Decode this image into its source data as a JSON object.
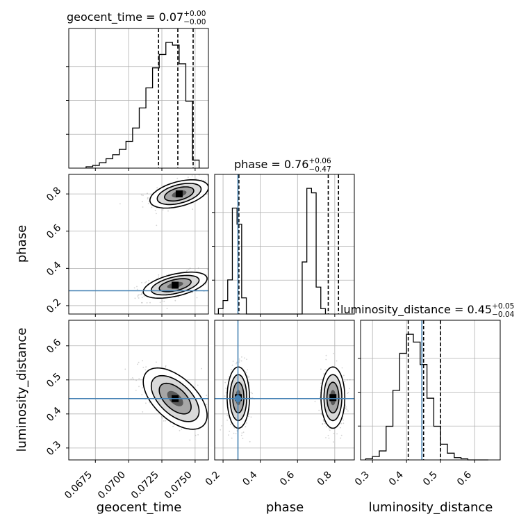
{
  "chart_data": {
    "type": "corner",
    "parameters": [
      "geocent_time",
      "phase",
      "luminosity_distance"
    ],
    "axis_labels": {
      "x": [
        "geocent_time",
        "phase",
        "luminosity_distance"
      ],
      "y": [
        "phase",
        "luminosity_distance"
      ]
    },
    "ranges": {
      "geocent_time": [
        0.0655,
        0.076
      ],
      "phase": [
        0.155,
        0.905
      ],
      "luminosity_distance": [
        0.265,
        0.675
      ]
    },
    "ticks": {
      "geocent_time": [
        0.0675,
        0.07,
        0.0725,
        0.075
      ],
      "phase": [
        0.2,
        0.4,
        0.6,
        0.8
      ],
      "luminosity_distance": [
        0.3,
        0.4,
        0.5,
        0.6
      ]
    },
    "tick_labels": {
      "geocent_time": [
        "0.0675",
        "0.0700",
        "0.0725",
        "0.0750"
      ],
      "phase": [
        "0.2",
        "0.4",
        "0.6",
        "0.8"
      ],
      "luminosity_distance": [
        "0.3",
        "0.4",
        "0.5",
        "0.6"
      ]
    },
    "truths": {
      "geocent_time": null,
      "phase": 0.28,
      "luminosity_distance": 0.445
    },
    "truth_color": "#4682b4",
    "titles": [
      {
        "param": "geocent_time",
        "prefix": "geocent_time = 0.07",
        "plus": "+0.00",
        "minus": "−0.00"
      },
      {
        "param": "phase",
        "prefix": "phase = 0.76",
        "plus": "+0.06",
        "minus": "−0.47"
      },
      {
        "param": "luminosity_distance",
        "prefix": "luminosity_distance = 0.45",
        "plus": "+0.05",
        "minus": "−0.04"
      }
    ],
    "quantiles": {
      "geocent_time": [
        0.07225,
        0.0737,
        0.07485
      ],
      "phase": [
        0.285,
        0.765,
        0.82
      ],
      "luminosity_distance": [
        0.405,
        0.45,
        0.5
      ]
    },
    "histograms": {
      "geocent_time": {
        "start": 0.0668,
        "width": 0.0005,
        "counts": [
          1,
          2,
          4,
          7,
          10,
          14,
          20,
          30,
          45,
          60,
          75,
          85,
          94,
          92,
          78,
          50,
          6
        ]
      },
      "phase": {
        "start": 0.175,
        "width": 0.025,
        "counts": [
          6,
          15,
          38,
          118,
          100,
          18,
          0,
          0,
          0,
          0,
          0,
          0,
          0,
          0,
          0,
          0,
          0,
          0,
          58,
          140,
          135,
          30,
          6
        ]
      },
      "luminosity_distance": {
        "start": 0.28,
        "width": 0.02,
        "counts": [
          1,
          3,
          8,
          30,
          62,
          95,
          112,
          105,
          85,
          55,
          30,
          14,
          6,
          2,
          1,
          0,
          0,
          0
        ]
      }
    },
    "contours_2d": [
      {
        "x": "geocent_time",
        "y": "phase",
        "modes": [
          {
            "cx": 0.0738,
            "cy": 0.8,
            "sx": 0.0011,
            "sy": 0.038,
            "rho": 0.45
          },
          {
            "cx": 0.0735,
            "cy": 0.31,
            "sx": 0.0012,
            "sy": 0.035,
            "rho": 0.5
          }
        ]
      },
      {
        "x": "geocent_time",
        "y": "luminosity_distance",
        "modes": [
          {
            "cx": 0.0735,
            "cy": 0.445,
            "sx": 0.0012,
            "sy": 0.045,
            "rho": -0.55
          }
        ]
      },
      {
        "x": "phase",
        "y": "luminosity_distance",
        "modes": [
          {
            "cx": 0.282,
            "cy": 0.448,
            "sx": 0.03,
            "sy": 0.045,
            "rho": 0.0
          },
          {
            "cx": 0.79,
            "cy": 0.448,
            "sx": 0.032,
            "sy": 0.045,
            "rho": 0.0
          }
        ]
      }
    ],
    "contour_levels": [
      0.5,
      1.0,
      1.5,
      2.0
    ],
    "colors": {
      "lines": "#000000",
      "grid": "#b0b0b0",
      "points": "#808080"
    }
  }
}
